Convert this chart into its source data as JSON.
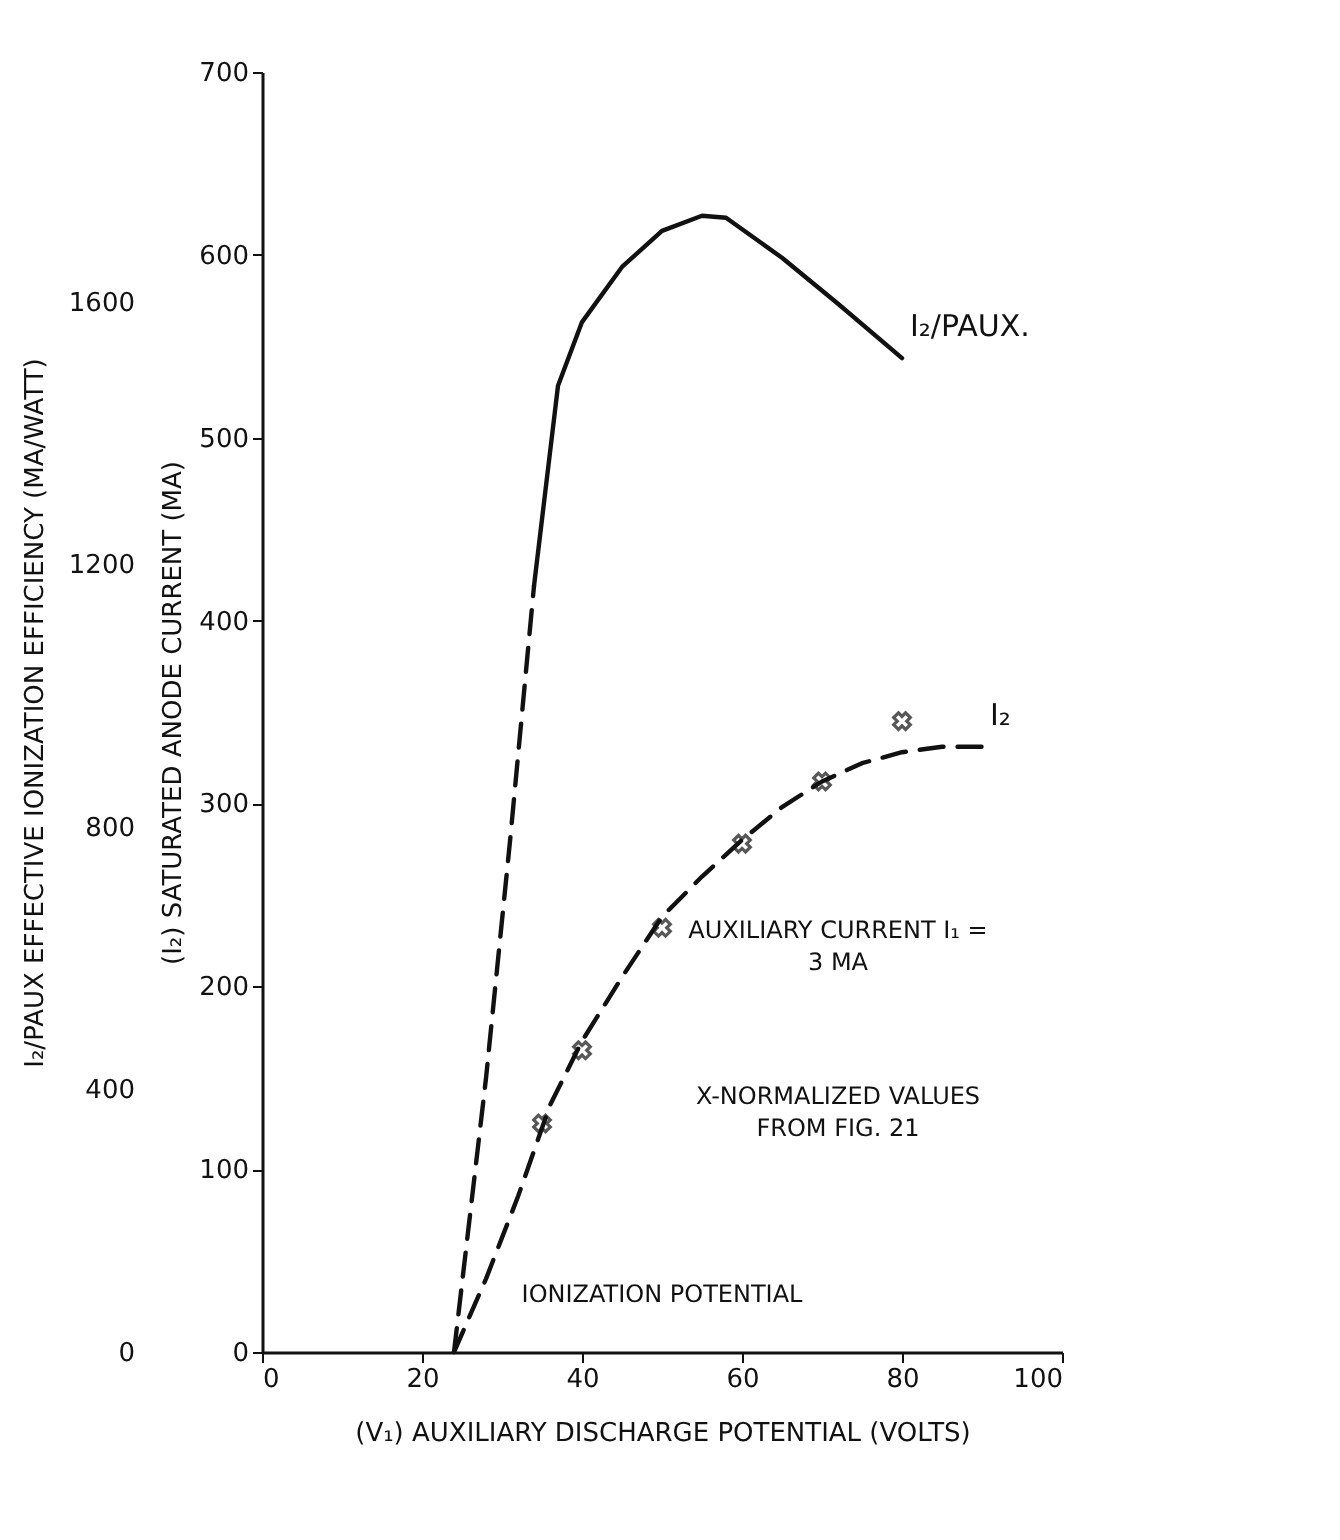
{
  "chart_data": {
    "type": "line",
    "xlabel": "(V₁) AUXILIARY DISCHARGE POTENTIAL (VOLTS)",
    "ylabel": "(I₂) SATURATED ANODE CURRENT (MA)",
    "y2label": "I₂/PAUX EFFECTIVE IONIZATION EFFICIENCY (MA/WATT)",
    "xlim": [
      0,
      100
    ],
    "xticks": [
      0,
      20,
      40,
      60,
      80,
      100
    ],
    "ylim": [
      0,
      700
    ],
    "yticks": [
      0,
      100,
      200,
      300,
      400,
      500,
      600,
      700
    ],
    "y2lim": [
      0,
      1950
    ],
    "y2ticks": [
      0,
      400,
      800,
      1200,
      1600
    ],
    "grid": false,
    "series": [
      {
        "axis": "y2",
        "line_style": "dashed",
        "color": "#111111",
        "x": [
          24,
          28,
          31,
          34
        ],
        "values": [
          0,
          417,
          778,
          1167
        ]
      },
      {
        "name": "I₂/PAUX.",
        "axis": "y2",
        "line_style": "solid",
        "color": "#111111",
        "x": [
          34,
          37,
          40,
          45,
          50,
          55,
          58,
          65,
          72,
          80
        ],
        "values": [
          1167,
          1472,
          1569,
          1653,
          1708,
          1731,
          1728,
          1667,
          1597,
          1514
        ]
      },
      {
        "name": "I₂",
        "line_style": "dashed",
        "color": "#111111",
        "x": [
          24,
          28,
          32,
          36,
          40,
          45,
          50,
          55,
          60,
          65,
          70,
          75,
          80,
          85,
          90
        ],
        "values": [
          0,
          40,
          85,
          135,
          170,
          205,
          238,
          260,
          280,
          298,
          312,
          322,
          328,
          331,
          331
        ]
      },
      {
        "type": "scatter",
        "marker": "cross",
        "color": "#111111",
        "x": [
          35,
          40,
          50,
          60,
          70,
          80
        ],
        "values": [
          125,
          165,
          232,
          278,
          312,
          345
        ]
      }
    ],
    "annotations": [
      "AUXILIARY CURRENT I₁ = 3 MA",
      "X-NORMALIZED VALUES FROM FIG. 21",
      "IONIZATION POTENTIAL"
    ]
  }
}
